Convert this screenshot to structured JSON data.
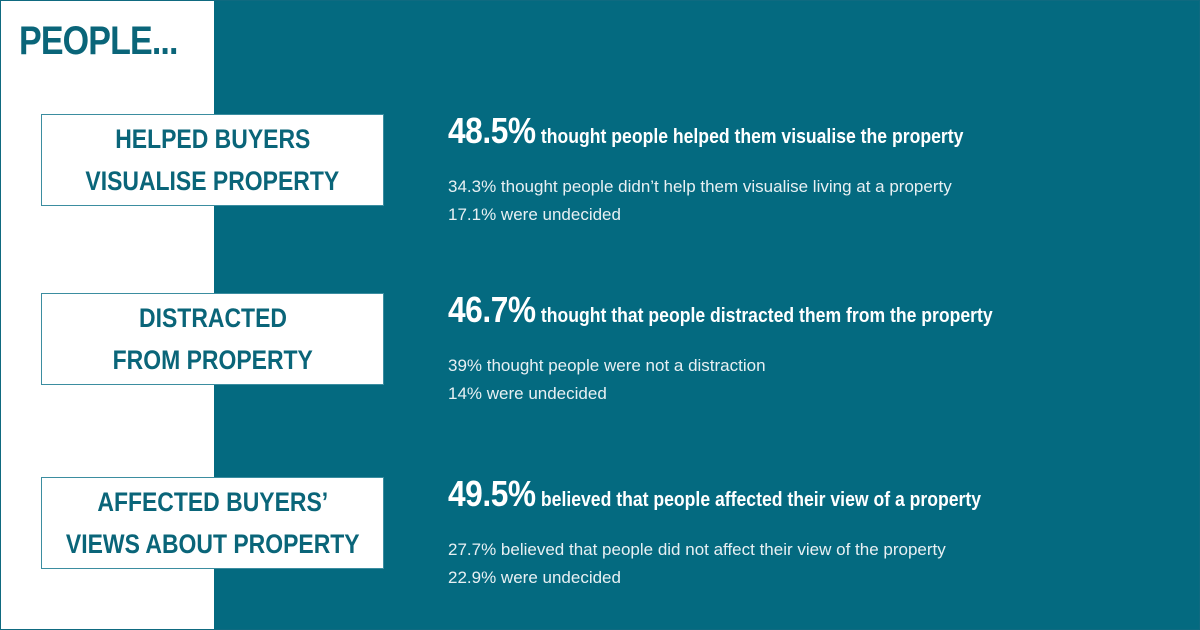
{
  "title": "PEOPLE...",
  "sections": [
    {
      "label": [
        "HELPED BUYERS",
        "VISUALISE PROPERTY"
      ],
      "headline_figure": "48.5%",
      "headline_text": "thought people helped them visualise the property",
      "details": [
        "34.3% thought people didn’t help them visualise living at a property",
        "17.1% were undecided"
      ]
    },
    {
      "label": [
        "DISTRACTED",
        "FROM PROPERTY"
      ],
      "headline_figure": "46.7%",
      "headline_text": "thought that people distracted them from the property",
      "details": [
        "39% thought people were not a distraction",
        "14% were undecided"
      ]
    },
    {
      "label": [
        "AFFECTED BUYERS’",
        "VIEWS ABOUT PROPERTY"
      ],
      "headline_figure": "49.5%",
      "headline_text": "believed that people affected their view of a property",
      "details": [
        "27.7% believed that people did not affect their view of the property",
        "22.9% were undecided"
      ]
    }
  ]
}
